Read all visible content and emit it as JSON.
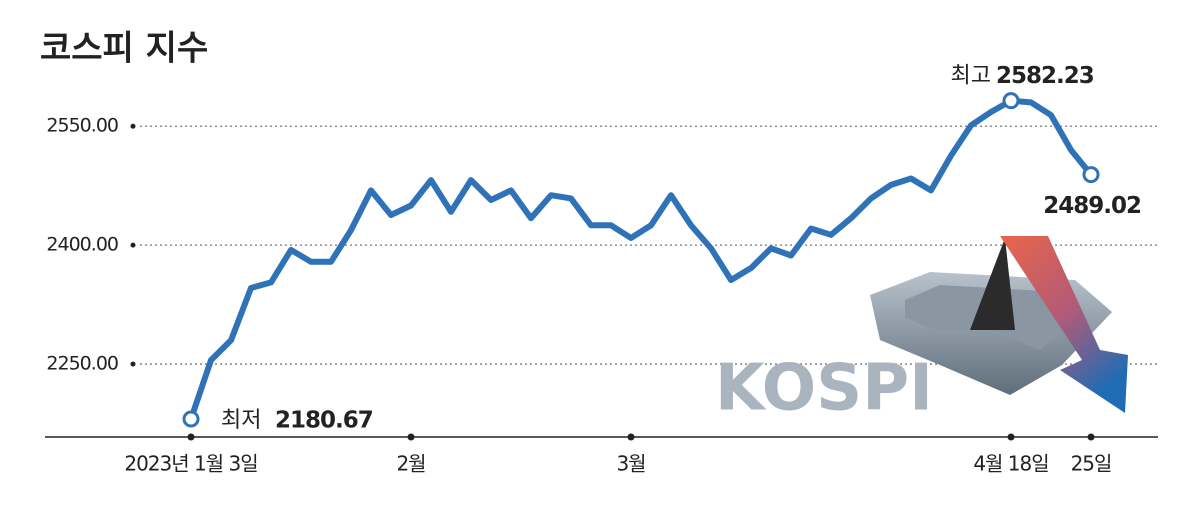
{
  "chart_data": {
    "type": "line",
    "title": "코스피 지수",
    "categories": [
      "2023년 1월 3일",
      null,
      null,
      null,
      null,
      null,
      null,
      null,
      null,
      null,
      null,
      "2월",
      null,
      null,
      null,
      null,
      null,
      null,
      null,
      null,
      null,
      null,
      "3월",
      null,
      null,
      null,
      null,
      null,
      null,
      null,
      null,
      null,
      null,
      null,
      null,
      null,
      null,
      null,
      null,
      null,
      null,
      "4월 18일",
      null,
      null,
      null,
      "25일"
    ],
    "values": [
      2180.67,
      2255,
      2280,
      2346,
      2353,
      2394,
      2379,
      2379,
      2419,
      2469,
      2438,
      2450,
      2482,
      2442,
      2482,
      2457,
      2469,
      2434,
      2463,
      2459,
      2425,
      2425,
      2409,
      2425,
      2463,
      2425,
      2396,
      2356,
      2371,
      2396,
      2387,
      2421,
      2413,
      2434,
      2459,
      2476,
      2484,
      2469,
      2513,
      2551,
      2568,
      2582.23,
      2580,
      2564,
      2520,
      2489.02
    ],
    "color": "#2f72b8",
    "ylim": [
      2158,
      2602
    ],
    "yticks": [
      {
        "value": 2250,
        "label": "2250.00"
      },
      {
        "value": 2400,
        "label": "2400.00"
      },
      {
        "value": 2550,
        "label": "2550.00"
      }
    ],
    "grid": true,
    "annotations": {
      "low": "최저",
      "high": "최고"
    },
    "logo": "KOSPI"
  }
}
